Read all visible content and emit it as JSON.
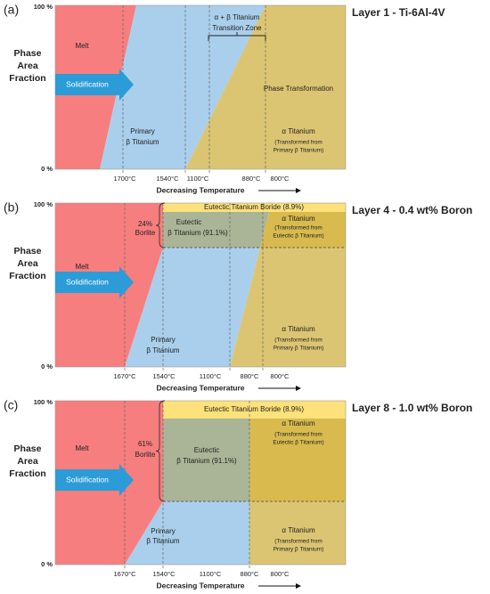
{
  "panels": [
    {
      "label": "(a)",
      "title": "Layer 1 - Ti-6Al-4V",
      "y_axis_label": [
        "Phase",
        "Area",
        "Fraction"
      ],
      "y_top": "100 %",
      "y_bottom": "0 %",
      "arrow_label": "Solidification",
      "x_axis_title": "Decreasing Temperature",
      "temperatures": [
        "1700°C",
        "1540°C",
        "1100°C",
        "880°C",
        "800°C"
      ],
      "regions": [
        "Melt",
        "α + β Titanium",
        "Transition Zone",
        "Phase Transformation",
        "Primary",
        "β Titanium",
        "α Titanium",
        "(Transformed from",
        "Primary β Titanium)"
      ]
    },
    {
      "label": "(b)",
      "title": "Layer 4 - 0.4 wt% Boron",
      "y_axis_label": [
        "Phase",
        "Area",
        "Fraction"
      ],
      "y_top": "100 %",
      "y_bottom": "0 %",
      "arrow_label": "Solidification",
      "x_axis_title": "Decreasing Temperature",
      "temperatures": [
        "1670°C",
        "1540°C",
        "1100°C",
        "880°C",
        "800°C"
      ],
      "regions": [
        "Melt",
        "24%",
        "Borlite",
        "Eutectic",
        "β Titanium (91.1%)",
        "Eutectic Titanium Boride (8.9%)",
        "α Titanium",
        "(Transformed from",
        "Eutectic β Titanium)",
        "Primary",
        "β Titanium",
        "α Titanium",
        "(Transformed from",
        "Primary β Titanium)"
      ]
    },
    {
      "label": "(c)",
      "title": "Layer 8 - 1.0 wt% Boron",
      "y_axis_label": [
        "Phase",
        "Area",
        "Fraction"
      ],
      "y_top": "100 %",
      "y_bottom": "0 %",
      "arrow_label": "Solidification",
      "x_axis_title": "Decreasing Temperature",
      "temperatures": [
        "1670°C",
        "1540°C",
        "1100°C",
        "880°C",
        "800°C"
      ],
      "regions": [
        "Melt",
        "61%",
        "Borlite",
        "Eutectic",
        "β Titanium (91.1%)",
        "Eutectic Titanium Boride (8.9%)",
        "α Titanium",
        "(Transformed from",
        "Eutectic β Titanium)",
        "Primary",
        "β Titanium",
        "α Titanium",
        "(Transformed from",
        "Primary β Titanium)"
      ]
    }
  ]
}
